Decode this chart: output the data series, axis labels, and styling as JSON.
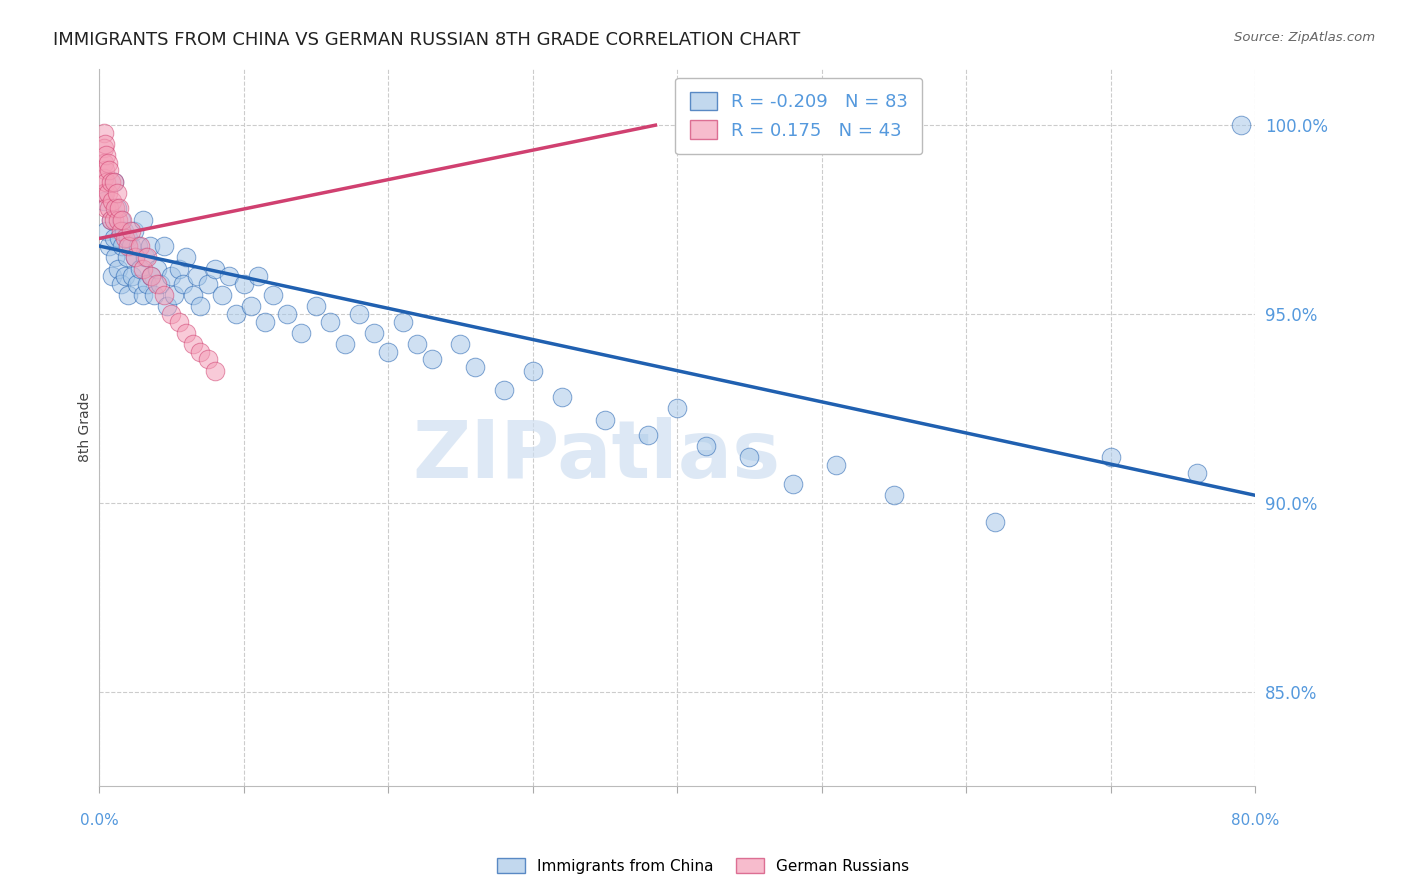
{
  "title": "IMMIGRANTS FROM CHINA VS GERMAN RUSSIAN 8TH GRADE CORRELATION CHART",
  "source": "Source: ZipAtlas.com",
  "ylabel": "8th Grade",
  "xlim": [
    0.0,
    0.8
  ],
  "ylim": [
    0.825,
    1.015
  ],
  "yticks": [
    0.85,
    0.9,
    0.95,
    1.0
  ],
  "ytick_labels": [
    "85.0%",
    "90.0%",
    "95.0%",
    "100.0%"
  ],
  "legend_r_china": "-0.209",
  "legend_n_china": "83",
  "legend_r_german": " 0.175",
  "legend_n_german": "43",
  "blue_color": "#a8c8e8",
  "pink_color": "#f4a0b8",
  "trendline_blue": "#2060b0",
  "trendline_pink": "#d04070",
  "blue_scatter_x": [
    0.003,
    0.005,
    0.007,
    0.008,
    0.009,
    0.01,
    0.01,
    0.011,
    0.012,
    0.013,
    0.014,
    0.015,
    0.015,
    0.016,
    0.017,
    0.018,
    0.019,
    0.02,
    0.02,
    0.022,
    0.023,
    0.024,
    0.025,
    0.026,
    0.027,
    0.028,
    0.03,
    0.03,
    0.032,
    0.033,
    0.035,
    0.036,
    0.038,
    0.04,
    0.042,
    0.045,
    0.047,
    0.05,
    0.052,
    0.055,
    0.058,
    0.06,
    0.065,
    0.068,
    0.07,
    0.075,
    0.08,
    0.085,
    0.09,
    0.095,
    0.1,
    0.105,
    0.11,
    0.115,
    0.12,
    0.13,
    0.14,
    0.15,
    0.16,
    0.17,
    0.18,
    0.19,
    0.2,
    0.21,
    0.22,
    0.23,
    0.25,
    0.26,
    0.28,
    0.3,
    0.32,
    0.35,
    0.38,
    0.4,
    0.42,
    0.45,
    0.48,
    0.51,
    0.55,
    0.62,
    0.7,
    0.76,
    0.79
  ],
  "blue_scatter_y": [
    0.98,
    0.972,
    0.968,
    0.975,
    0.96,
    0.985,
    0.97,
    0.965,
    0.978,
    0.962,
    0.97,
    0.975,
    0.958,
    0.968,
    0.972,
    0.96,
    0.965,
    0.97,
    0.955,
    0.968,
    0.96,
    0.972,
    0.965,
    0.958,
    0.968,
    0.962,
    0.975,
    0.955,
    0.965,
    0.958,
    0.968,
    0.96,
    0.955,
    0.962,
    0.958,
    0.968,
    0.952,
    0.96,
    0.955,
    0.962,
    0.958,
    0.965,
    0.955,
    0.96,
    0.952,
    0.958,
    0.962,
    0.955,
    0.96,
    0.95,
    0.958,
    0.952,
    0.96,
    0.948,
    0.955,
    0.95,
    0.945,
    0.952,
    0.948,
    0.942,
    0.95,
    0.945,
    0.94,
    0.948,
    0.942,
    0.938,
    0.942,
    0.936,
    0.93,
    0.935,
    0.928,
    0.922,
    0.918,
    0.925,
    0.915,
    0.912,
    0.905,
    0.91,
    0.902,
    0.895,
    0.912,
    0.908,
    1.0
  ],
  "pink_scatter_x": [
    0.003,
    0.003,
    0.003,
    0.003,
    0.003,
    0.004,
    0.004,
    0.004,
    0.005,
    0.005,
    0.005,
    0.006,
    0.006,
    0.007,
    0.007,
    0.008,
    0.008,
    0.009,
    0.01,
    0.01,
    0.011,
    0.012,
    0.013,
    0.014,
    0.015,
    0.016,
    0.018,
    0.02,
    0.022,
    0.025,
    0.028,
    0.03,
    0.033,
    0.036,
    0.04,
    0.045,
    0.05,
    0.055,
    0.06,
    0.065,
    0.07,
    0.075,
    0.08
  ],
  "pink_scatter_y": [
    0.998,
    0.994,
    0.99,
    0.986,
    0.982,
    0.995,
    0.988,
    0.982,
    0.992,
    0.985,
    0.978,
    0.99,
    0.982,
    0.988,
    0.978,
    0.985,
    0.975,
    0.98,
    0.985,
    0.975,
    0.978,
    0.982,
    0.975,
    0.978,
    0.972,
    0.975,
    0.97,
    0.968,
    0.972,
    0.965,
    0.968,
    0.962,
    0.965,
    0.96,
    0.958,
    0.955,
    0.95,
    0.948,
    0.945,
    0.942,
    0.94,
    0.938,
    0.935
  ],
  "blue_trend_x": [
    0.0,
    0.8
  ],
  "blue_trend_y": [
    0.968,
    0.902
  ],
  "pink_trend_x": [
    0.0,
    0.385
  ],
  "pink_trend_y": [
    0.97,
    1.0
  ],
  "background_color": "#ffffff",
  "grid_color": "#cccccc",
  "title_fontsize": 13,
  "tick_label_color": "#5599dd",
  "legend_text_color": "#5599dd"
}
